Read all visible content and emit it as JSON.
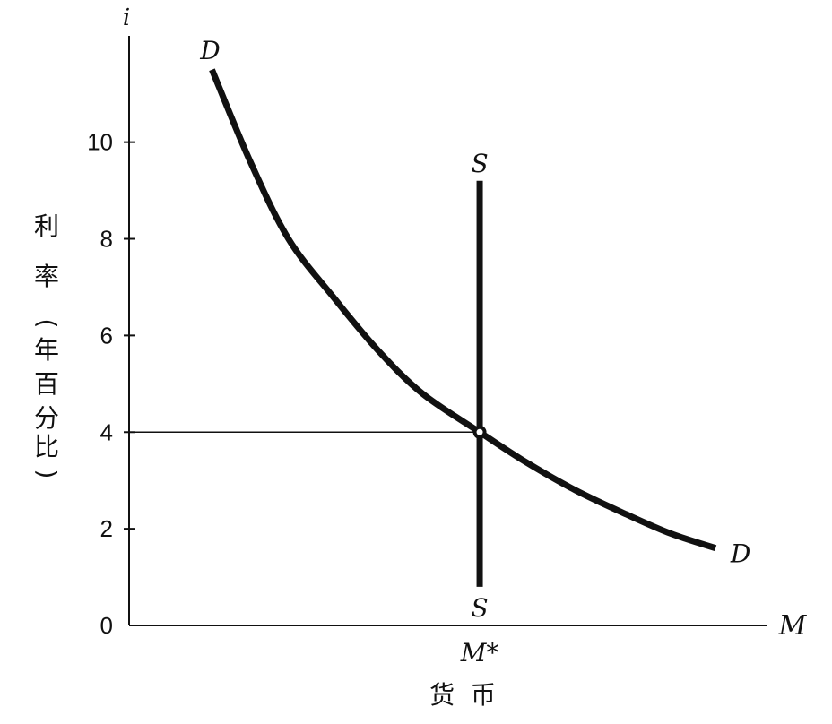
{
  "chart_data": {
    "type": "line",
    "y_axis_symbol": "i",
    "x_axis_symbol": "M",
    "ylabel_lines": [
      "利",
      "率",
      "(",
      "年",
      "百",
      "分",
      "比",
      ")"
    ],
    "xlabel": "货  币",
    "ylim": [
      0,
      12.2
    ],
    "yticks": [
      0,
      2,
      4,
      6,
      8,
      10
    ],
    "xlim": [
      0,
      100
    ],
    "equilibrium": {
      "x": 55,
      "y": 4,
      "x_label": "M*"
    },
    "series": [
      {
        "label_start": "D",
        "label_end": "D",
        "points": [
          [
            13,
            11.5
          ],
          [
            19,
            9.6
          ],
          [
            25,
            8.0
          ],
          [
            32,
            6.8
          ],
          [
            39,
            5.7
          ],
          [
            46,
            4.8
          ],
          [
            55,
            4.0
          ],
          [
            62,
            3.4
          ],
          [
            70,
            2.8
          ],
          [
            78,
            2.3
          ],
          [
            85,
            1.9
          ],
          [
            92,
            1.6
          ]
        ]
      },
      {
        "label_start": "S",
        "label_end": "S",
        "points": [
          [
            55,
            0.8
          ],
          [
            55,
            9.2
          ]
        ]
      }
    ]
  }
}
